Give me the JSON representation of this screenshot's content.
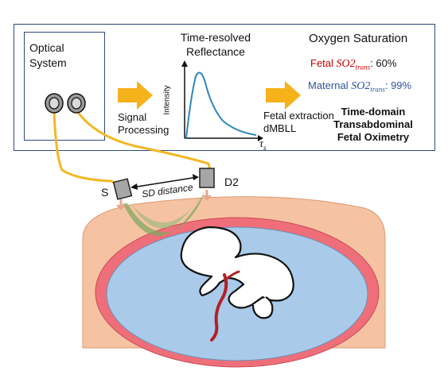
{
  "optical_system": {
    "line1": "Optical",
    "line2": "System"
  },
  "signal_processing": {
    "line1": "Signal",
    "line2": "Processing"
  },
  "trr": {
    "title_line1": "Time-resolved",
    "title_line2": "Reflectance",
    "y_label": "Intensity",
    "x_label": "τ",
    "x_sub": "s"
  },
  "extraction": {
    "line1": "Fetal extraction",
    "line2": "dMBLL"
  },
  "oxygen": {
    "title": "Oxygen Saturation",
    "fetal_prefix": "Fetal ",
    "fetal_value": ":  60%",
    "maternal_prefix": "Maternal ",
    "maternal_value": ": 99%",
    "so2_main": "SO2",
    "so2_sub": "trans"
  },
  "method": {
    "line1": "Time-domain",
    "line2": "Transabdominal",
    "line3": "Fetal Oximetry"
  },
  "probe": {
    "source": "S",
    "detector": "D2",
    "distance": "SD distance"
  },
  "colors": {
    "frame": "#2f4a7a",
    "arrow": "#f5b21b",
    "fiber": "#f2b824",
    "fetal_text": "#c00000",
    "maternal_text": "#2f5597",
    "curve": "#2e86b8",
    "skin": "#f6c3a2",
    "uterus_wall": "#ee6f7a",
    "fluid": "#a9cbe9",
    "beam": "#7fa860",
    "cord": "#b22025"
  }
}
